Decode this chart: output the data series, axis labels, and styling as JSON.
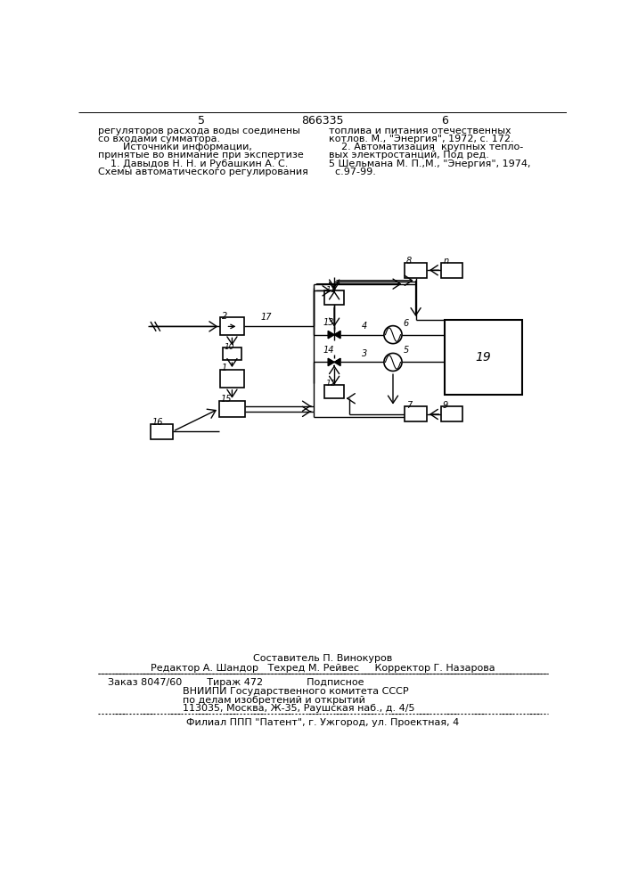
{
  "bg_color": "#ffffff",
  "page_left": "5",
  "page_right": "6",
  "patent_num": "866335",
  "left_texts": [
    "регуляторов расхода воды соединены",
    "со входами сумматора.",
    "        Источники информации,",
    "принятые во внимание при экспертизе",
    "    1. Давыдов Н. Н. и Рубашкин А. С.",
    "Схемы автоматического регулирования"
  ],
  "right_texts": [
    "топлива и питания отечественных",
    "котлов. М., \"Энергия\", 1972, с. 172.",
    "    2. Автоматизация  крупных тепло-",
    "вых электростанций, Под ред.",
    "5 Шельмана М. П.,М., \"Энергия\", 1974,",
    "  с.97-99."
  ],
  "footer_composer": "Составитель П. Винокуров",
  "footer_credits": "Редактор А. Шандор   Техред М. Рейвес     Корректор Г. Назарова",
  "footer_order": "Заказ 8047/60        Тираж 472              Подписное",
  "footer_vnipi": "ВНИИПИ Государственного комитета СССР",
  "footer_affairs": "по делам изобретений и открытий",
  "footer_address": "113035, Москва, Ж-35, Раушская наб., д. 4/5",
  "footer_filial": "Филиал ППП \"Патент\", г. Ужгород, ул. Проектная, 4"
}
